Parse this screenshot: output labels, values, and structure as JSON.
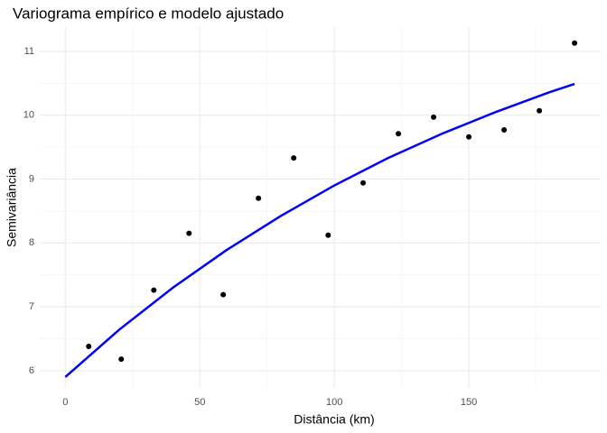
{
  "chart_data": {
    "type": "scatter",
    "title": "Variograma empírico e modelo ajustado",
    "x_label": "Distância (km)",
    "y_label": "Semivariância",
    "xlim": [
      -9.5,
      199
    ],
    "ylim": [
      5.73,
      11.38
    ],
    "xticks": [
      0,
      50,
      100,
      150
    ],
    "yticks": [
      6,
      7,
      8,
      9,
      10,
      11
    ],
    "grid": true,
    "series": [
      {
        "type": "scatter",
        "color": "#000000",
        "x": [
          8.7,
          20.8,
          32.9,
          46,
          58.7,
          71.8,
          84.9,
          97.7,
          110.7,
          123.8,
          136.9,
          150,
          163.1,
          176.2,
          189.3
        ],
        "values": [
          6.38,
          6.18,
          7.26,
          8.15,
          7.19,
          8.7,
          9.33,
          8.12,
          8.94,
          9.71,
          9.97,
          9.66,
          9.77,
          10.07,
          11.13
        ]
      },
      {
        "type": "line",
        "color": "#0000ff",
        "x": [
          0,
          20,
          40,
          60,
          80,
          100,
          120,
          140,
          160,
          180,
          189.3
        ],
        "values": [
          5.9,
          6.64,
          7.3,
          7.89,
          8.42,
          8.9,
          9.33,
          9.71,
          10.05,
          10.36,
          10.49
        ]
      }
    ]
  }
}
